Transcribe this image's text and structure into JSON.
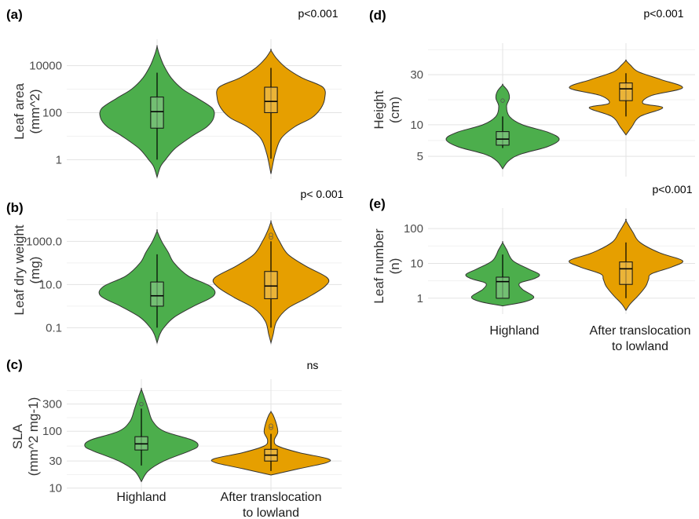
{
  "figure": {
    "categories": [
      "Highland",
      "After translocation\nto lowland"
    ],
    "colors": {
      "Highland": "#4cae4c",
      "After translocation\nto lowland": "#e69f00"
    }
  },
  "chart_data": [
    {
      "panel": "(a)",
      "type": "violin",
      "log_y": true,
      "ylabel": "Leaf area\n(mm^2)",
      "annotation": "p<0.001",
      "yticks": [
        1,
        100,
        10000
      ],
      "ytick_labels": [
        "1",
        "100",
        "10000"
      ],
      "ylim": [
        0.15,
        90000
      ],
      "groups": [
        {
          "name": "Highland",
          "min": 1,
          "q1": 22,
          "median": 110,
          "q3": 460,
          "max": 5000,
          "outliers": [],
          "shape": [
            [
              0.18,
              0
            ],
            [
              0.5,
              0.06
            ],
            [
              1,
              0.15
            ],
            [
              3,
              0.32
            ],
            [
              10,
              0.62
            ],
            [
              25,
              0.88
            ],
            [
              60,
              1.0
            ],
            [
              150,
              0.98
            ],
            [
              400,
              0.72
            ],
            [
              1000,
              0.45
            ],
            [
              3000,
              0.25
            ],
            [
              10000,
              0.12
            ],
            [
              30000,
              0.04
            ],
            [
              65000,
              0
            ]
          ]
        },
        {
          "name": "After translocation\nto lowland",
          "min": 1.1,
          "q1": 100,
          "median": 300,
          "q3": 1200,
          "max": 8000,
          "outliers": [],
          "shape": [
            [
              0.25,
              0
            ],
            [
              0.6,
              0.03
            ],
            [
              2,
              0.08
            ],
            [
              8,
              0.18
            ],
            [
              25,
              0.42
            ],
            [
              60,
              0.72
            ],
            [
              150,
              0.88
            ],
            [
              400,
              0.95
            ],
            [
              1200,
              0.92
            ],
            [
              3000,
              0.55
            ],
            [
              8000,
              0.27
            ],
            [
              20000,
              0.1
            ],
            [
              45000,
              0
            ]
          ]
        }
      ]
    },
    {
      "panel": "(b)",
      "type": "violin",
      "log_y": true,
      "ylabel": "Leaf dry weight\n(mg)",
      "annotation": "p< 0.001",
      "yticks": [
        0.1,
        10,
        1000
      ],
      "ytick_labels": [
        "0.1",
        "10.0",
        "1000.0"
      ],
      "ylim": [
        0.015,
        15000
      ],
      "groups": [
        {
          "name": "Highland",
          "min": 0.1,
          "q1": 1,
          "median": 3,
          "q3": 13,
          "max": 250,
          "outliers": [],
          "shape": [
            [
              0.02,
              0
            ],
            [
              0.05,
              0.05
            ],
            [
              0.1,
              0.12
            ],
            [
              0.3,
              0.3
            ],
            [
              1,
              0.65
            ],
            [
              3,
              1.0
            ],
            [
              8,
              0.95
            ],
            [
              25,
              0.55
            ],
            [
              100,
              0.3
            ],
            [
              300,
              0.2
            ],
            [
              1000,
              0.08
            ],
            [
              3000,
              0
            ]
          ]
        },
        {
          "name": "After translocation\nto lowland",
          "min": 0.1,
          "q1": 2.2,
          "median": 8.5,
          "q3": 40,
          "max": 1000,
          "outliers": [
            1500,
            2000
          ],
          "shape": [
            [
              0.02,
              0
            ],
            [
              0.05,
              0.04
            ],
            [
              0.2,
              0.1
            ],
            [
              0.8,
              0.3
            ],
            [
              2.5,
              0.65
            ],
            [
              8,
              0.95
            ],
            [
              20,
              1.0
            ],
            [
              70,
              0.62
            ],
            [
              250,
              0.3
            ],
            [
              1000,
              0.15
            ],
            [
              3000,
              0.06
            ],
            [
              8000,
              0
            ]
          ]
        }
      ]
    },
    {
      "panel": "(c)",
      "type": "violin",
      "log_y": true,
      "ylabel": "SLA\n(mm^2 mg-1)",
      "annotation": "ns",
      "yticks": [
        10,
        30,
        100,
        300
      ],
      "ytick_labels": [
        "10",
        "30",
        "100",
        "300"
      ],
      "ylim": [
        9,
        700
      ],
      "groups": [
        {
          "name": "Highland",
          "min": 25,
          "q1": 47,
          "median": 60,
          "q3": 80,
          "max": 250,
          "outliers": [
            300
          ],
          "shape": [
            [
              13,
              0
            ],
            [
              20,
              0.12
            ],
            [
              30,
              0.4
            ],
            [
              45,
              0.85
            ],
            [
              55,
              1.0
            ],
            [
              70,
              0.9
            ],
            [
              100,
              0.4
            ],
            [
              150,
              0.2
            ],
            [
              250,
              0.12
            ],
            [
              400,
              0.05
            ],
            [
              550,
              0
            ]
          ]
        },
        {
          "name": "After translocation\nto lowland",
          "min": 20,
          "q1": 30,
          "median": 38,
          "q3": 48,
          "max": 90,
          "outliers": [
            115,
            125
          ],
          "shape": [
            [
              17,
              0
            ],
            [
              22,
              0.5
            ],
            [
              28,
              0.98
            ],
            [
              33,
              1.0
            ],
            [
              42,
              0.5
            ],
            [
              55,
              0.12
            ],
            [
              70,
              0.06
            ],
            [
              95,
              0.12
            ],
            [
              130,
              0.1
            ],
            [
              190,
              0.04
            ],
            [
              220,
              0
            ]
          ]
        }
      ]
    },
    {
      "panel": "(d)",
      "type": "violin",
      "log_y": true,
      "ylabel": "Height\n(cm)",
      "annotation": "p<0.001",
      "yticks": [
        5,
        10,
        30
      ],
      "ytick_labels": [
        "5",
        "10",
        "30"
      ],
      "ylim": [
        3.2,
        55
      ],
      "groups": [
        {
          "name": "Highland",
          "min": 6,
          "q1": 6.4,
          "median": 7.3,
          "q3": 8.6,
          "max": 12,
          "outliers": [
            17
          ],
          "shape": [
            [
              3.8,
              0
            ],
            [
              4.5,
              0.1
            ],
            [
              5.2,
              0.3
            ],
            [
              6.2,
              0.8
            ],
            [
              7.3,
              1.0
            ],
            [
              8.5,
              0.8
            ],
            [
              10,
              0.35
            ],
            [
              12,
              0.12
            ],
            [
              15,
              0.07
            ],
            [
              18,
              0.12
            ],
            [
              21,
              0.09
            ],
            [
              24,
              0
            ]
          ]
        },
        {
          "name": "After translocation\nto lowland",
          "min": 12,
          "q1": 17,
          "median": 22,
          "q3": 25,
          "max": 31,
          "outliers": [],
          "shape": [
            [
              8,
              0
            ],
            [
              9.5,
              0.1
            ],
            [
              12,
              0.25
            ],
            [
              14.5,
              0.65
            ],
            [
              16,
              0.3
            ],
            [
              19,
              0.45
            ],
            [
              22.5,
              1.0
            ],
            [
              27,
              0.62
            ],
            [
              32,
              0.22
            ],
            [
              37,
              0.08
            ],
            [
              41,
              0
            ]
          ]
        }
      ]
    },
    {
      "panel": "(e)",
      "type": "violin",
      "log_y": true,
      "ylabel": "Leaf number\n(n)",
      "annotation": "p<0.001",
      "yticks": [
        1,
        10,
        100
      ],
      "ytick_labels": [
        "1",
        "10",
        "100"
      ],
      "ylim": [
        0.35,
        300
      ],
      "groups": [
        {
          "name": "Highland",
          "min": 1,
          "q1": 1,
          "median": 3,
          "q3": 4,
          "max": 18,
          "outliers": [],
          "shape": [
            [
              0.6,
              0
            ],
            [
              0.8,
              0.4
            ],
            [
              1.1,
              0.55
            ],
            [
              1.8,
              0.35
            ],
            [
              2.7,
              0.3
            ],
            [
              3.6,
              0.55
            ],
            [
              4.8,
              0.65
            ],
            [
              7,
              0.45
            ],
            [
              12,
              0.18
            ],
            [
              25,
              0.07
            ],
            [
              40,
              0
            ]
          ]
        },
        {
          "name": "After translocation\nto lowland",
          "min": 1,
          "q1": 2.5,
          "median": 7,
          "q3": 11,
          "max": 40,
          "outliers": [],
          "shape": [
            [
              0.45,
              0
            ],
            [
              0.7,
              0.08
            ],
            [
              1.2,
              0.22
            ],
            [
              2.2,
              0.35
            ],
            [
              3.5,
              0.4
            ],
            [
              5,
              0.45
            ],
            [
              8,
              0.82
            ],
            [
              12,
              1.0
            ],
            [
              20,
              0.6
            ],
            [
              40,
              0.25
            ],
            [
              80,
              0.12
            ],
            [
              170,
              0
            ]
          ]
        }
      ]
    }
  ]
}
